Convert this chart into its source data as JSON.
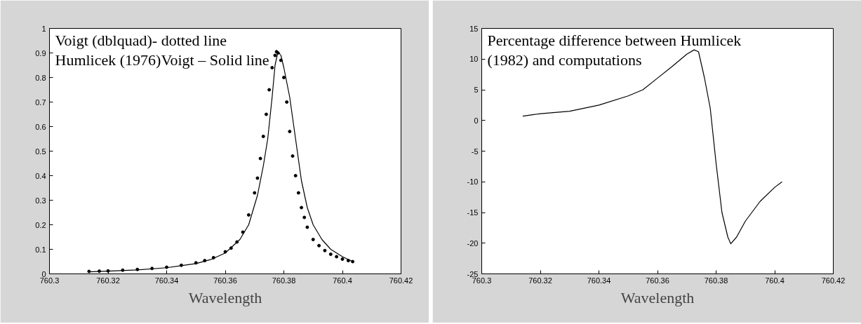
{
  "chart_data": [
    {
      "type": "line",
      "xlabel": "Wavelength",
      "annotations": [
        "Voigt (dblquad)- dotted line",
        "Humlicek (1976)Voigt – Solid line"
      ],
      "xlim": [
        760.3,
        760.42
      ],
      "xticks": [
        760.3,
        760.32,
        760.34,
        760.36,
        760.38,
        760.4,
        760.42
      ],
      "ylim": [
        0,
        1
      ],
      "yticks": [
        0,
        0.1,
        0.2,
        0.3,
        0.4,
        0.5,
        0.6,
        0.7,
        0.8,
        0.9,
        1
      ],
      "grid": false,
      "series": [
        {
          "type": "scatter",
          "marker": "circle",
          "color": "#000000",
          "x": [
            760.3135,
            760.317,
            760.32,
            760.325,
            760.33,
            760.335,
            760.34,
            760.345,
            760.35,
            760.353,
            760.356,
            760.36,
            760.362,
            760.364,
            760.366,
            760.368,
            760.37,
            760.371,
            760.372,
            760.373,
            760.374,
            760.375,
            760.376,
            760.377,
            760.3775,
            760.378,
            760.379,
            760.38,
            760.381,
            760.382,
            760.383,
            760.384,
            760.385,
            760.386,
            760.387,
            760.388,
            760.39,
            760.392,
            760.394,
            760.396,
            760.398,
            760.4,
            760.402,
            760.4035
          ],
          "values": [
            0.01,
            0.011,
            0.012,
            0.015,
            0.018,
            0.022,
            0.027,
            0.035,
            0.045,
            0.054,
            0.066,
            0.09,
            0.105,
            0.13,
            0.17,
            0.24,
            0.33,
            0.39,
            0.47,
            0.56,
            0.65,
            0.75,
            0.84,
            0.89,
            0.905,
            0.9,
            0.87,
            0.8,
            0.7,
            0.58,
            0.48,
            0.4,
            0.33,
            0.27,
            0.23,
            0.19,
            0.14,
            0.115,
            0.095,
            0.08,
            0.07,
            0.06,
            0.054,
            0.05
          ]
        },
        {
          "color": "#000000",
          "x": [
            760.3135,
            760.32,
            760.33,
            760.34,
            760.35,
            760.355,
            760.36,
            760.365,
            760.368,
            760.371,
            760.373,
            760.3745,
            760.376,
            760.377,
            760.378,
            760.379,
            760.38,
            760.382,
            760.384,
            760.386,
            760.388,
            760.39,
            760.393,
            760.396,
            760.4,
            760.4035
          ],
          "values": [
            0.008,
            0.011,
            0.016,
            0.025,
            0.042,
            0.058,
            0.085,
            0.14,
            0.2,
            0.32,
            0.44,
            0.55,
            0.72,
            0.85,
            0.905,
            0.89,
            0.84,
            0.72,
            0.55,
            0.38,
            0.27,
            0.2,
            0.14,
            0.1,
            0.07,
            0.05
          ]
        }
      ]
    },
    {
      "type": "line",
      "xlabel": "Wavelength",
      "annotations": [
        "Percentage difference between Humlicek",
        "(1982) and computations"
      ],
      "xlim": [
        760.3,
        760.42
      ],
      "xticks": [
        760.3,
        760.32,
        760.34,
        760.36,
        760.38,
        760.4,
        760.42
      ],
      "ylim": [
        -25,
        15
      ],
      "yticks": [
        -25,
        -20,
        -15,
        -10,
        -5,
        0,
        5,
        10,
        15
      ],
      "grid": false,
      "series": [
        {
          "color": "#000000",
          "x": [
            760.314,
            760.32,
            760.33,
            760.34,
            760.35,
            760.355,
            760.36,
            760.365,
            760.37,
            760.3725,
            760.374,
            760.376,
            760.378,
            760.38,
            760.382,
            760.384,
            760.385,
            760.387,
            760.39,
            760.395,
            760.4,
            760.4025
          ],
          "values": [
            0.7,
            1.1,
            1.5,
            2.5,
            4.0,
            5.0,
            6.9,
            8.8,
            10.8,
            11.5,
            11.2,
            7.0,
            2.0,
            -7.0,
            -15.0,
            -19.0,
            -20.1,
            -19.0,
            -16.4,
            -13.2,
            -10.9,
            -10.0
          ]
        }
      ]
    }
  ]
}
